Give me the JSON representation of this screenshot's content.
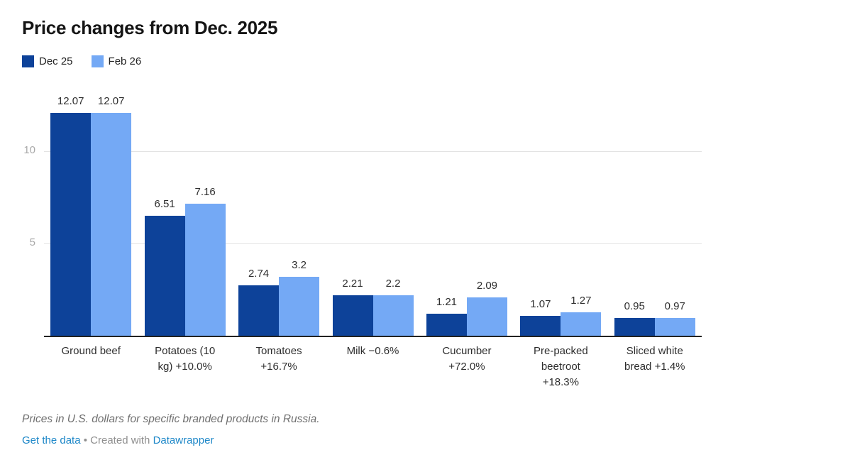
{
  "title": "Price changes from Dec. 2025",
  "legend": {
    "items": [
      {
        "label": "Dec 25",
        "color": "#0d4299"
      },
      {
        "label": "Feb 26",
        "color": "#74a9f5"
      }
    ]
  },
  "chart_data": {
    "type": "bar",
    "title": "Price changes from Dec. 2025",
    "categories": [
      "Ground beef",
      "Potatoes (10 kg) +10.0%",
      "Tomatoes +16.7%",
      "Milk −0.6%",
      "Cucumber +72.0%",
      "Pre-packed beetroot +18.3%",
      "Sliced white bread +1.4%"
    ],
    "series": [
      {
        "name": "Dec 25",
        "color": "#0d4299",
        "values": [
          12.07,
          6.51,
          2.74,
          2.21,
          1.21,
          1.07,
          0.95
        ]
      },
      {
        "name": "Feb 26",
        "color": "#74a9f5",
        "values": [
          12.07,
          7.16,
          3.2,
          2.2,
          2.09,
          1.27,
          0.97
        ]
      }
    ],
    "value_labels": [
      [
        "12.07",
        "6.51",
        "2.74",
        "2.21",
        "1.21",
        "1.07",
        "0.95"
      ],
      [
        "12.07",
        "7.16",
        "3.2",
        "2.2",
        "2.09",
        "1.27",
        "0.97"
      ]
    ],
    "y_ticks": [
      "5",
      "10"
    ],
    "y_tick_values": [
      5,
      10
    ],
    "ylim": [
      0,
      12.2
    ],
    "grid": true,
    "legend_position": "top-left"
  },
  "footer": {
    "notes": "Prices in U.S. dollars for specific branded products in Russia.",
    "get_data_label": "Get the data",
    "separator": "•",
    "created_with": "Created with",
    "brand": "Datawrapper",
    "link_color": "#1d87c8"
  }
}
